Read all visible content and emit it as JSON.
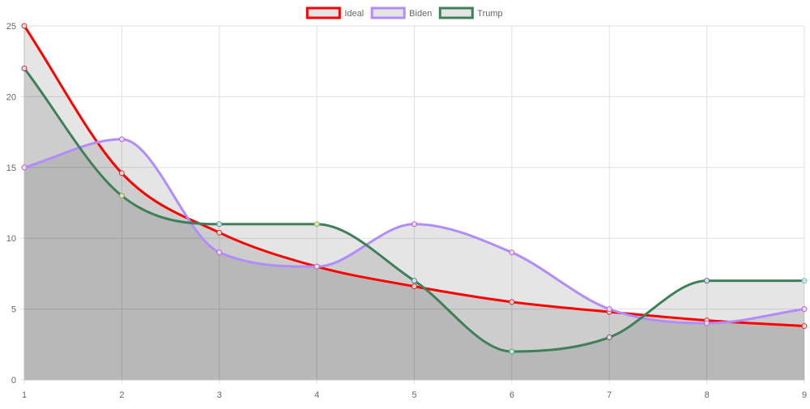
{
  "chart_data": {
    "type": "line",
    "title": "",
    "xlabel": "",
    "ylabel": "",
    "x": [
      1,
      2,
      3,
      4,
      5,
      6,
      7,
      8,
      9
    ],
    "xlim": [
      1,
      9
    ],
    "ylim": [
      0,
      25
    ],
    "x_ticks": [
      "1",
      "2",
      "3",
      "4",
      "5",
      "6",
      "7",
      "8",
      "9"
    ],
    "y_ticks": [
      "0",
      "5",
      "10",
      "15",
      "20",
      "25"
    ],
    "y_tick_values": [
      0,
      5,
      10,
      15,
      20,
      25
    ],
    "grid": true,
    "legend_position": "top",
    "series": [
      {
        "name": "Ideal",
        "color": "#ff0000",
        "values": [
          25,
          14.6,
          10.4,
          8.0,
          6.6,
          5.5,
          4.8,
          4.2,
          3.8
        ]
      },
      {
        "name": "Biden",
        "color": "#b18cfa",
        "values": [
          15,
          17,
          9,
          8,
          11,
          9,
          5,
          4,
          5
        ]
      },
      {
        "name": "Trump",
        "color": "#3f7f5a",
        "values": [
          22,
          13,
          11,
          11,
          7,
          2,
          3,
          7,
          7
        ]
      }
    ]
  }
}
